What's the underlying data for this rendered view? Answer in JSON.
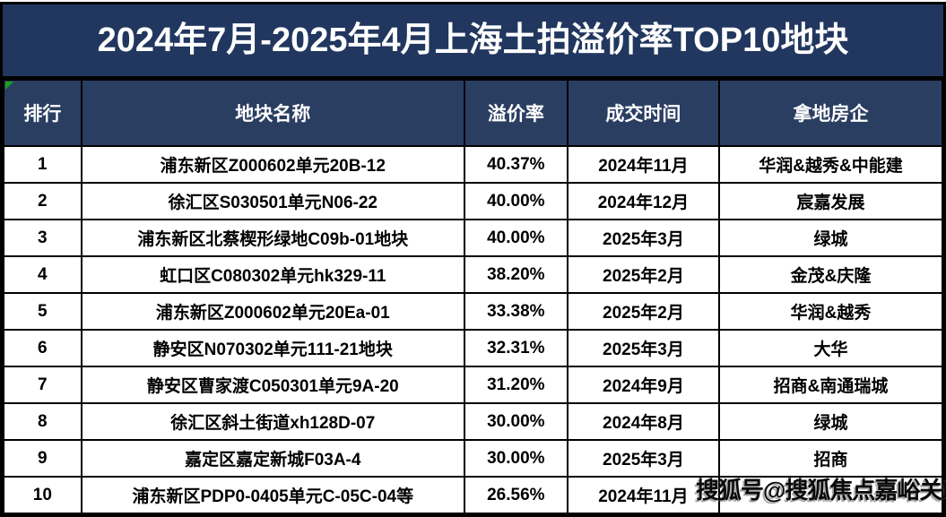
{
  "title": "2024年7月-2025年4月上海土拍溢价率TOP10地块",
  "watermark": "搜狐号@搜狐焦点嘉峪关站",
  "colors": {
    "title_bg": "#21375F",
    "header_bg": "#2A3E62",
    "header_text": "#FFFFFF",
    "body_text": "#000000",
    "border": "#000000",
    "row_bg": "#FFFFFF",
    "error_indicator_green": "#16A216"
  },
  "chart_data": {
    "type": "table",
    "title": "2024年7月-2025年4月上海土拍溢价率TOP10地块",
    "columns": [
      "排行",
      "地块名称",
      "溢价率",
      "成交时间",
      "拿地房企"
    ],
    "rows": [
      [
        "1",
        "浦东新区Z000602单元20B-12",
        "40.37%",
        "2024年11月",
        "华润&越秀&中能建"
      ],
      [
        "2",
        "徐汇区S030501单元N06-22",
        "40.00%",
        "2024年12月",
        "宸嘉发展"
      ],
      [
        "3",
        "浦东新区北蔡楔形绿地C09b-01地块",
        "40.00%",
        "2025年3月",
        "绿城"
      ],
      [
        "4",
        "虹口区C080302单元hk329-11",
        "38.20%",
        "2025年2月",
        "金茂&庆隆"
      ],
      [
        "5",
        "浦东新区Z000602单元20Ea-01",
        "33.38%",
        "2025年2月",
        "华润&越秀"
      ],
      [
        "6",
        "静安区N070302单元111-21地块",
        "32.31%",
        "2025年3月",
        "大华"
      ],
      [
        "7",
        "静安区曹家渡C050301单元9A-20",
        "31.20%",
        "2024年9月",
        "招商&南通瑞城"
      ],
      [
        "8",
        "徐汇区斜土街道xh128D-07",
        "30.00%",
        "2024年8月",
        "绿城"
      ],
      [
        "9",
        "嘉定区嘉定新城F03A-4",
        "30.00%",
        "2025年3月",
        "招商"
      ],
      [
        "10",
        "浦东新区PDP0-0405单元C-05C-04等",
        "26.56%",
        "2024年11月",
        ""
      ]
    ]
  }
}
